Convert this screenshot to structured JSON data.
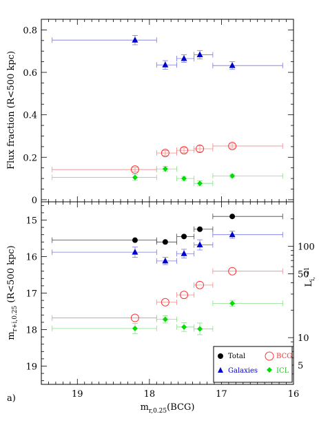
{
  "colors": {
    "total": "#000000",
    "galaxies": "#0000cc",
    "bcg": "#ff3333",
    "icl": "#00dd00",
    "bcg_bar": "#f08a8a",
    "gal_bar": "#7777dd",
    "icl_bar": "#88dd88",
    "total_bar": "#444444"
  },
  "chart_data": [
    {
      "type": "scatter",
      "panel": "top",
      "ylabel": "Flux fraction (R<500 kpc)",
      "xlim": [
        19.5,
        16.0
      ],
      "ylim": [
        -0.01,
        0.85
      ],
      "y_ticks": [
        0,
        0.2,
        0.4,
        0.6,
        0.8
      ],
      "y_tick_labels": [
        "0",
        "0.2",
        "0.4",
        "0.6",
        "0.8"
      ],
      "series": [
        {
          "key": "galaxies",
          "marker": "triangle",
          "points": [
            {
              "x": 18.2,
              "y": 0.752,
              "xlo": 19.35,
              "xhi": 17.9,
              "yerr": 0.022
            },
            {
              "x": 17.78,
              "y": 0.635,
              "xlo": 17.9,
              "xhi": 17.62,
              "yerr": 0.02
            },
            {
              "x": 17.52,
              "y": 0.665,
              "xlo": 17.62,
              "xhi": 17.38,
              "yerr": 0.018
            },
            {
              "x": 17.3,
              "y": 0.683,
              "xlo": 17.38,
              "xhi": 17.12,
              "yerr": 0.02
            },
            {
              "x": 16.85,
              "y": 0.632,
              "xlo": 17.12,
              "xhi": 16.15,
              "yerr": 0.018
            }
          ]
        },
        {
          "key": "bcg",
          "marker": "open-circle",
          "points": [
            {
              "x": 18.2,
              "y": 0.142,
              "xlo": 19.35,
              "xhi": 17.9,
              "yerr": 0.01
            },
            {
              "x": 17.78,
              "y": 0.22,
              "xlo": 17.9,
              "xhi": 17.62,
              "yerr": 0.012
            },
            {
              "x": 17.52,
              "y": 0.233,
              "xlo": 17.62,
              "xhi": 17.38,
              "yerr": 0.012
            },
            {
              "x": 17.3,
              "y": 0.24,
              "xlo": 17.38,
              "xhi": 17.12,
              "yerr": 0.014
            },
            {
              "x": 16.85,
              "y": 0.253,
              "xlo": 17.12,
              "xhi": 16.15,
              "yerr": 0.01
            }
          ]
        },
        {
          "key": "icl",
          "marker": "diamond",
          "points": [
            {
              "x": 18.2,
              "y": 0.105,
              "xlo": 19.35,
              "xhi": 17.9,
              "yerr": 0.014
            },
            {
              "x": 17.78,
              "y": 0.145,
              "xlo": 17.9,
              "xhi": 17.62,
              "yerr": 0.012
            },
            {
              "x": 17.52,
              "y": 0.1,
              "xlo": 17.62,
              "xhi": 17.38,
              "yerr": 0.01
            },
            {
              "x": 17.3,
              "y": 0.077,
              "xlo": 17.38,
              "xhi": 17.12,
              "yerr": 0.012
            },
            {
              "x": 16.85,
              "y": 0.112,
              "xlo": 17.12,
              "xhi": 16.15,
              "yerr": 0.008
            }
          ]
        }
      ]
    },
    {
      "type": "scatter",
      "panel": "bottom",
      "xlabel_main": "m",
      "xlabel_sub": "r,0.25",
      "xlabel_rest": "(BCG)",
      "ylabel_main": "m",
      "ylabel_sub": "r+i,0.25",
      "ylabel_rest": " (R<500 kpc)",
      "y2label_main": "L",
      "y2label_sub": "i,",
      "y2label_sup": "-21",
      "panel_label": "a)",
      "xlim": [
        19.5,
        16.0
      ],
      "ylim": [
        14.5,
        19.5
      ],
      "x_ticks": [
        19,
        18,
        17,
        16
      ],
      "x_tick_labels": [
        "19",
        "18",
        "17",
        "16"
      ],
      "y_ticks": [
        15,
        16,
        17,
        18,
        19
      ],
      "y_tick_labels": [
        "15",
        "16",
        "17",
        "18",
        "19"
      ],
      "y2_ticks": [
        100,
        50,
        10,
        5
      ],
      "y2_tick_labels": [
        "100",
        "50",
        "10",
        "5"
      ],
      "series": [
        {
          "key": "total",
          "marker": "filled-circle",
          "points": [
            {
              "x": 18.2,
              "y": 15.55,
              "xlo": 19.35,
              "xhi": 17.9,
              "yerr": 0.0
            },
            {
              "x": 17.78,
              "y": 15.6,
              "xlo": 17.9,
              "xhi": 17.62,
              "yerr": 0.0
            },
            {
              "x": 17.52,
              "y": 15.45,
              "xlo": 17.62,
              "xhi": 17.38,
              "yerr": 0.0
            },
            {
              "x": 17.3,
              "y": 15.25,
              "xlo": 17.38,
              "xhi": 17.12,
              "yerr": 0.0
            },
            {
              "x": 16.85,
              "y": 14.9,
              "xlo": 17.12,
              "xhi": 16.15,
              "yerr": 0.0
            }
          ]
        },
        {
          "key": "galaxies",
          "marker": "triangle",
          "points": [
            {
              "x": 18.2,
              "y": 15.88,
              "xlo": 19.35,
              "xhi": 17.9,
              "yerr": 0.14
            },
            {
              "x": 17.78,
              "y": 16.12,
              "xlo": 17.9,
              "xhi": 17.62,
              "yerr": 0.1
            },
            {
              "x": 17.52,
              "y": 15.92,
              "xlo": 17.62,
              "xhi": 17.38,
              "yerr": 0.12
            },
            {
              "x": 17.3,
              "y": 15.68,
              "xlo": 17.38,
              "xhi": 17.12,
              "yerr": 0.14
            },
            {
              "x": 16.85,
              "y": 15.4,
              "xlo": 17.12,
              "xhi": 16.15,
              "yerr": 0.1
            }
          ]
        },
        {
          "key": "bcg",
          "marker": "open-circle",
          "points": [
            {
              "x": 18.2,
              "y": 17.68,
              "xlo": 19.35,
              "xhi": 17.9,
              "yerr": 0.0
            },
            {
              "x": 17.78,
              "y": 17.25,
              "xlo": 17.9,
              "xhi": 17.62,
              "yerr": 0.0
            },
            {
              "x": 17.52,
              "y": 17.05,
              "xlo": 17.62,
              "xhi": 17.38,
              "yerr": 0.0
            },
            {
              "x": 17.3,
              "y": 16.78,
              "xlo": 17.38,
              "xhi": 17.12,
              "yerr": 0.0
            },
            {
              "x": 16.85,
              "y": 16.4,
              "xlo": 17.12,
              "xhi": 16.15,
              "yerr": 0.0
            }
          ]
        },
        {
          "key": "icl",
          "marker": "diamond",
          "points": [
            {
              "x": 18.2,
              "y": 17.97,
              "xlo": 19.35,
              "xhi": 17.9,
              "yerr": 0.14
            },
            {
              "x": 17.78,
              "y": 17.72,
              "xlo": 17.9,
              "xhi": 17.62,
              "yerr": 0.1
            },
            {
              "x": 17.52,
              "y": 17.93,
              "xlo": 17.62,
              "xhi": 17.38,
              "yerr": 0.12
            },
            {
              "x": 17.3,
              "y": 17.98,
              "xlo": 17.38,
              "xhi": 17.12,
              "yerr": 0.16
            },
            {
              "x": 16.85,
              "y": 17.28,
              "xlo": 17.12,
              "xhi": 16.15,
              "yerr": 0.08
            }
          ]
        }
      ],
      "legend": {
        "placement": "bottom-right",
        "entries": [
          {
            "key": "total",
            "label": "Total"
          },
          {
            "key": "bcg",
            "label": "BCG"
          },
          {
            "key": "galaxies",
            "label": "Galaxies"
          },
          {
            "key": "icl",
            "label": "ICL"
          }
        ]
      }
    }
  ]
}
